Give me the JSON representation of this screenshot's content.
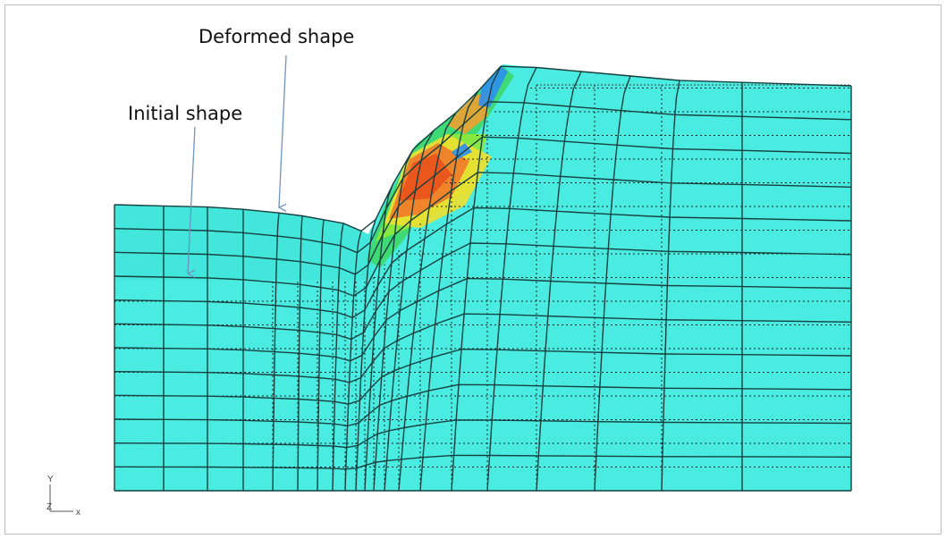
{
  "labels": {
    "deformed": "Deformed shape",
    "initial": "Initial shape"
  },
  "triad": {
    "y": "Y",
    "z": "Z",
    "x": "x"
  }
}
